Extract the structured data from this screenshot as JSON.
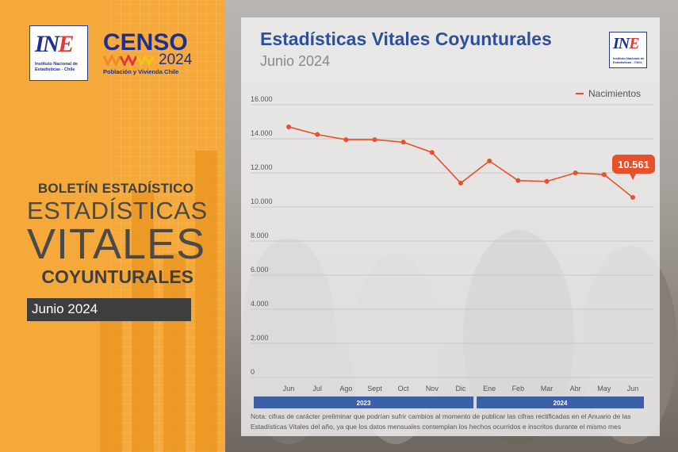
{
  "left_panel": {
    "ine_logo": {
      "mark_in": "IN",
      "mark_e": "E",
      "caption_line1": "Instituto Nacional de",
      "caption_line2": "Estadísticas - Chile"
    },
    "censo_logo": {
      "title": "CENSO",
      "year": "2024",
      "tagline": "Población y Vivienda Chile"
    },
    "bulletin": {
      "line1": "BOLETÍN ESTADÍSTICO",
      "line2": "ESTADÍSTICAS",
      "line3": "VITALES",
      "line4": "COYUNTURALES",
      "date": "Junio 2024"
    },
    "colors": {
      "background": "#f4a93a",
      "date_box": "#3e3e3e",
      "brand_blue": "#1f2f8f",
      "brand_red": "#e03a3a"
    }
  },
  "card": {
    "title": "Estadísticas Vitales Coyunturales",
    "subtitle": "Junio 2024",
    "logo": {
      "mark_in": "IN",
      "mark_e": "E",
      "caption_line1": "Instituto Nacional de",
      "caption_line2": "Estadísticas - Chile"
    },
    "note_line1": "Nota: cifras de carácter preliminar que  podrían sufrir cambios al momento de publicar las cifras rectificadas en  el Anuario de las",
    "note_line2": "Estadísticas Vitales del año, ya que los datos  mensuales contemplan los hechos ocurridos e inscritos durante el mismo  mes"
  },
  "chart_data": {
    "type": "line",
    "categories": [
      "Jun",
      "Jul",
      "Ago",
      "Sept",
      "Oct",
      "Nov",
      "Dic",
      "Ene",
      "Feb",
      "Mar",
      "Abr",
      "May",
      "Jun"
    ],
    "series": [
      {
        "name": "Nacimientos",
        "color": "#e8502a",
        "values": [
          14700,
          14250,
          13950,
          13950,
          13800,
          13200,
          11400,
          12700,
          11550,
          11500,
          12000,
          11900,
          10561
        ]
      }
    ],
    "yticks": [
      "0",
      "2.000",
      "4.000",
      "6.000",
      "8.000",
      "10.000",
      "12.000",
      "14.000",
      "16.000"
    ],
    "ylim": [
      0,
      16000
    ],
    "grid": true,
    "legend": "top-right",
    "year_groups": [
      {
        "label": "2023",
        "months": 7
      },
      {
        "label": "2024",
        "months": 6
      }
    ],
    "callout": {
      "label": "10.561",
      "index": 12
    },
    "year_bar_color": "#3c5fa8"
  }
}
